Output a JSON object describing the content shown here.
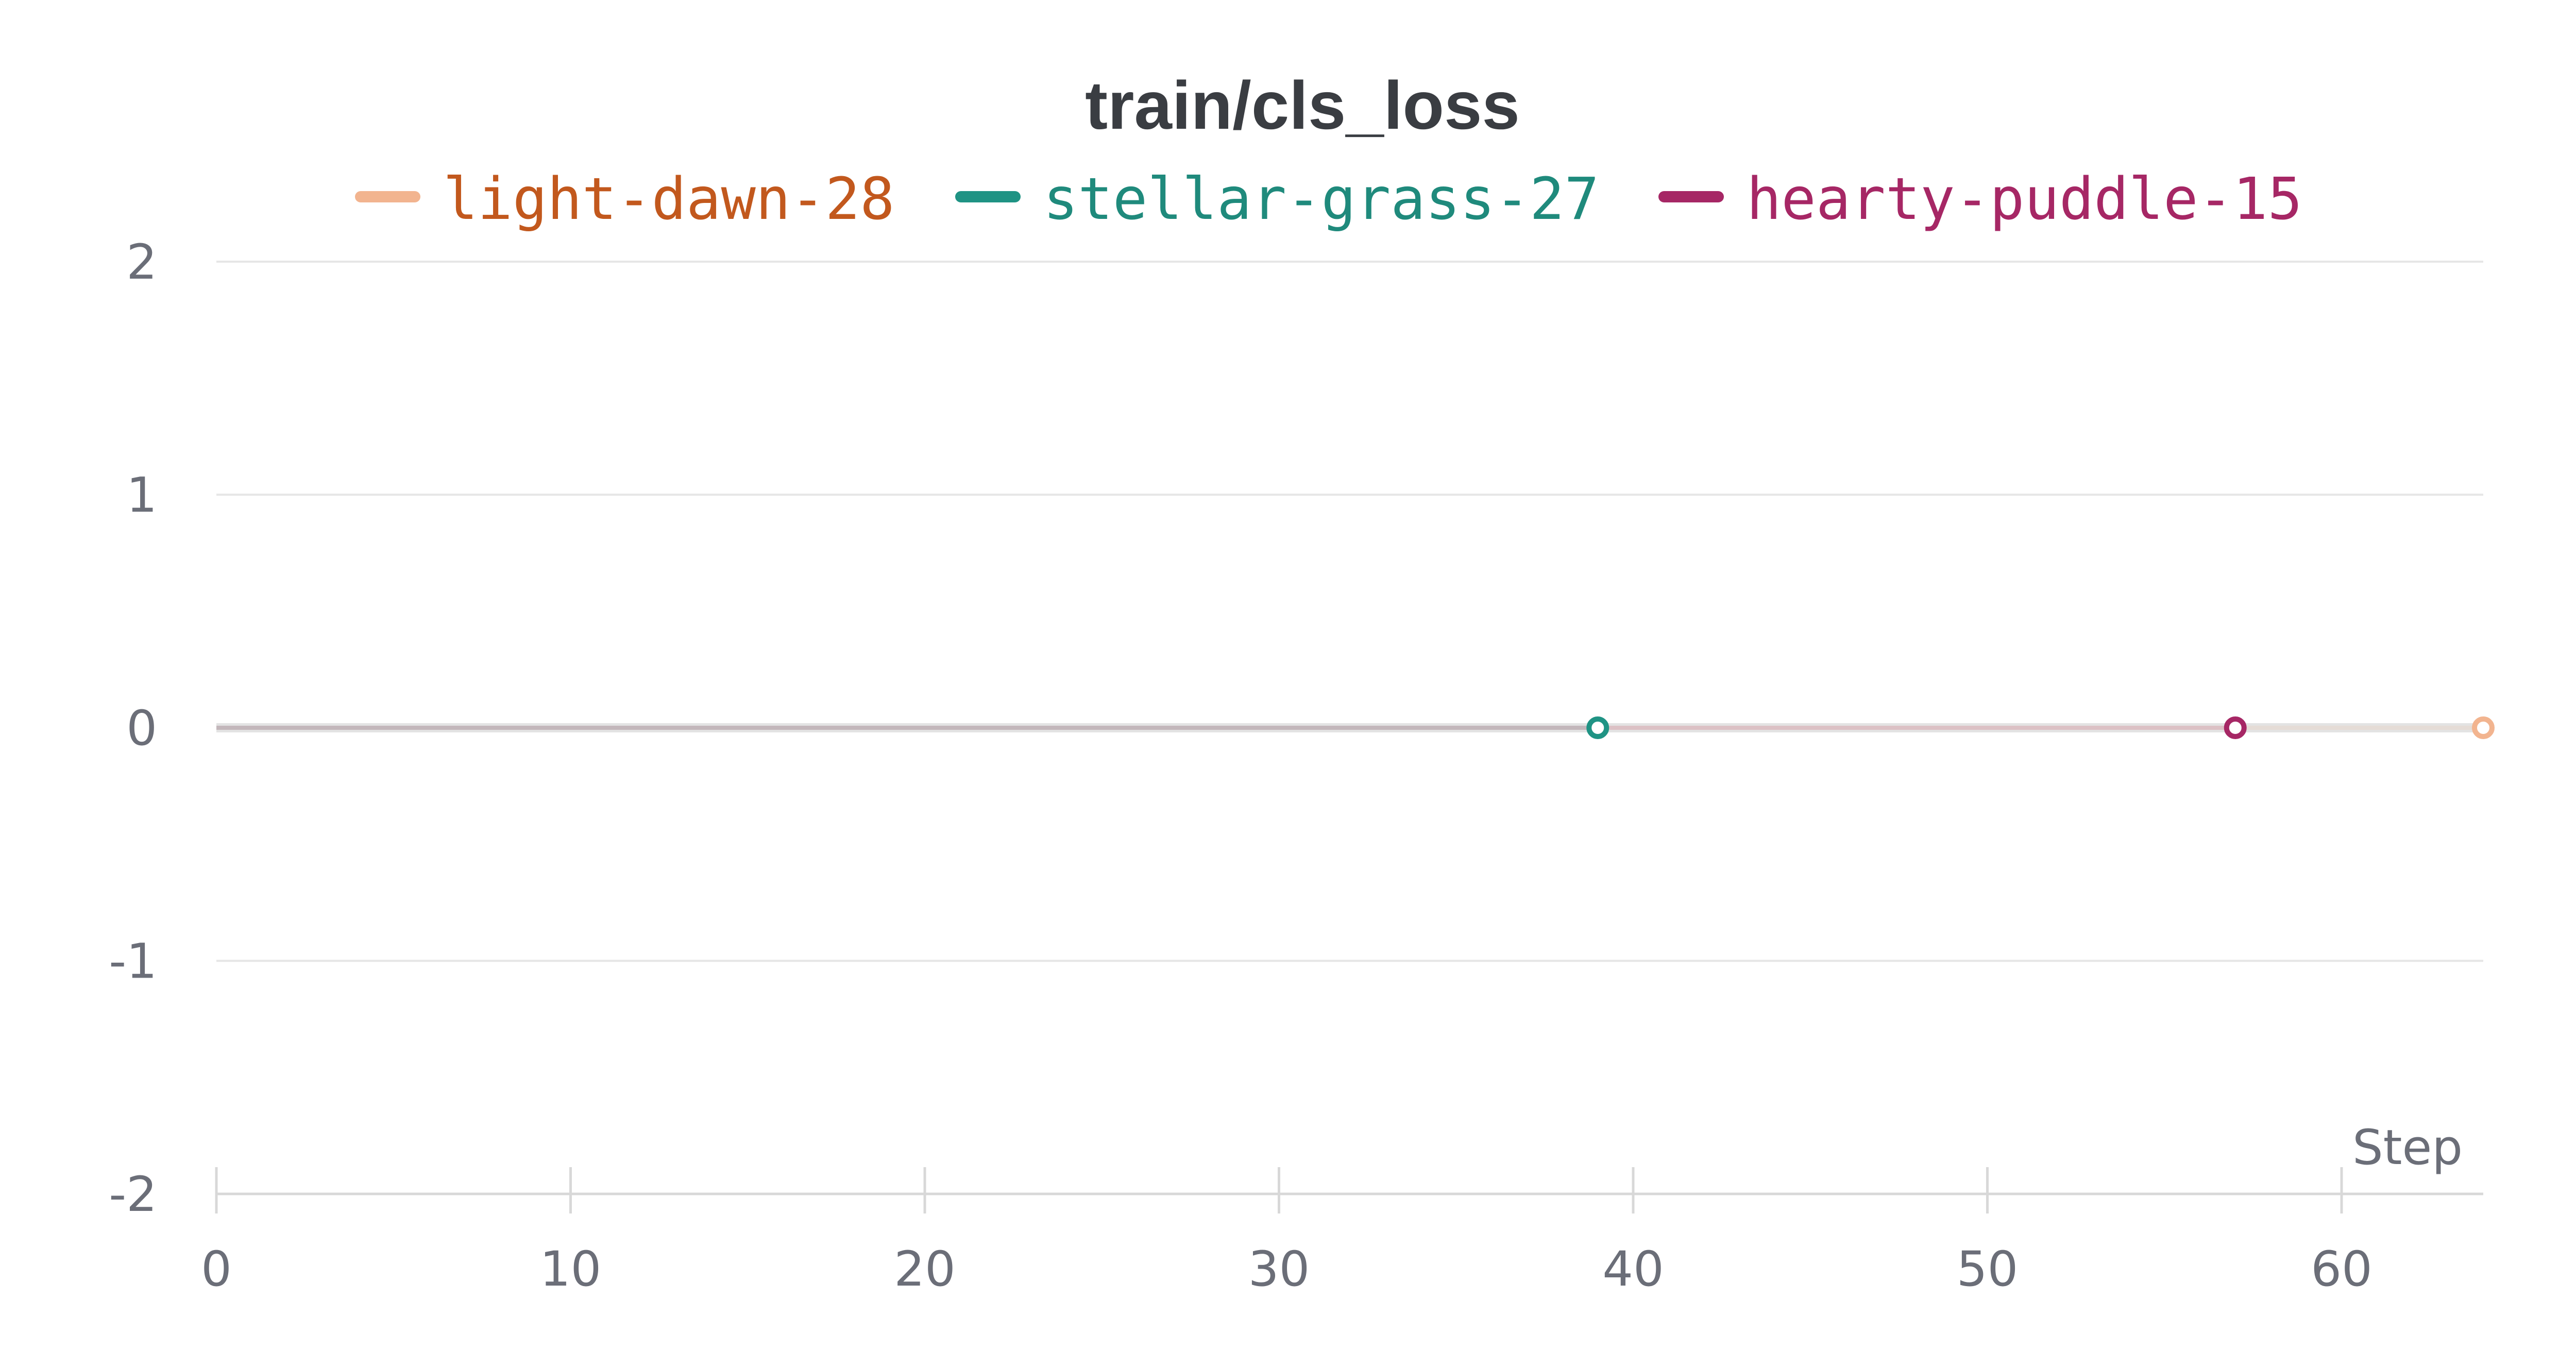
{
  "chart_data": {
    "type": "line",
    "title": "train/cls_loss",
    "xlabel": "Step",
    "ylabel": "",
    "xlim": [
      0,
      64
    ],
    "ylim": [
      -2,
      2
    ],
    "x_ticks": [
      "0",
      "10",
      "20",
      "30",
      "40",
      "50",
      "60"
    ],
    "y_ticks": [
      "2",
      "1",
      "0",
      "-1",
      "-2"
    ],
    "grid": true,
    "legend_position": "top-center",
    "series": [
      {
        "name": "light-dawn-28",
        "line_color": "#f2b48f",
        "text_color": "#c2581d",
        "points": [
          [
            0,
            0
          ],
          [
            64,
            0
          ]
        ]
      },
      {
        "name": "stellar-grass-27",
        "line_color": "#1f9384",
        "text_color": "#1f8a7c",
        "points": [
          [
            0,
            0
          ],
          [
            39,
            0
          ]
        ]
      },
      {
        "name": "hearty-puddle-15",
        "line_color": "#a62765",
        "text_color": "#a62765",
        "points": [
          [
            0,
            0
          ],
          [
            57,
            0
          ]
        ]
      }
    ]
  }
}
